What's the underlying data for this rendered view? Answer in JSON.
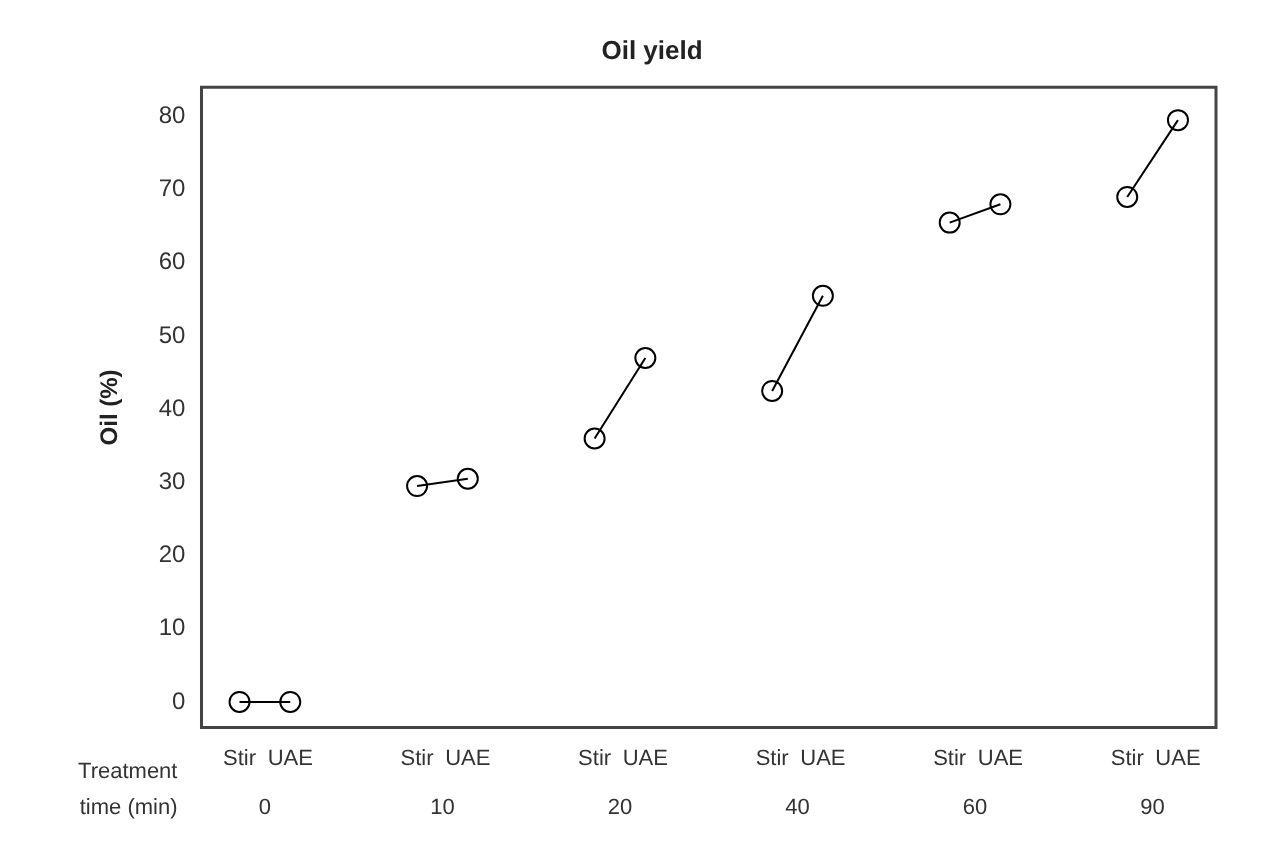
{
  "chart_data": {
    "type": "line",
    "title": "Oil yield",
    "ylabel": "Oil (%)",
    "categories": [
      "Stir",
      "UAE",
      "Stir",
      "UAE",
      "Stir",
      "UAE",
      "Stir",
      "UAE",
      "Stir",
      "UAE",
      "Stir",
      "UAE"
    ],
    "series": [
      {
        "color": "#000000",
        "values": [
          0,
          0,
          29.5,
          30.5,
          36,
          47,
          42.5,
          55.5,
          65.5,
          68,
          69,
          79.5
        ]
      }
    ],
    "annotations": [
      "Treatment",
      "time (min)",
      "0",
      "10",
      "20",
      "40",
      "60",
      "90"
    ],
    "ylim": [
      -3.5,
      84
    ],
    "yticks": [
      0,
      10,
      20,
      30,
      40,
      50,
      60,
      70,
      80
    ],
    "grid": false,
    "legend": false,
    "marker": "circle",
    "line_style": "solid"
  }
}
